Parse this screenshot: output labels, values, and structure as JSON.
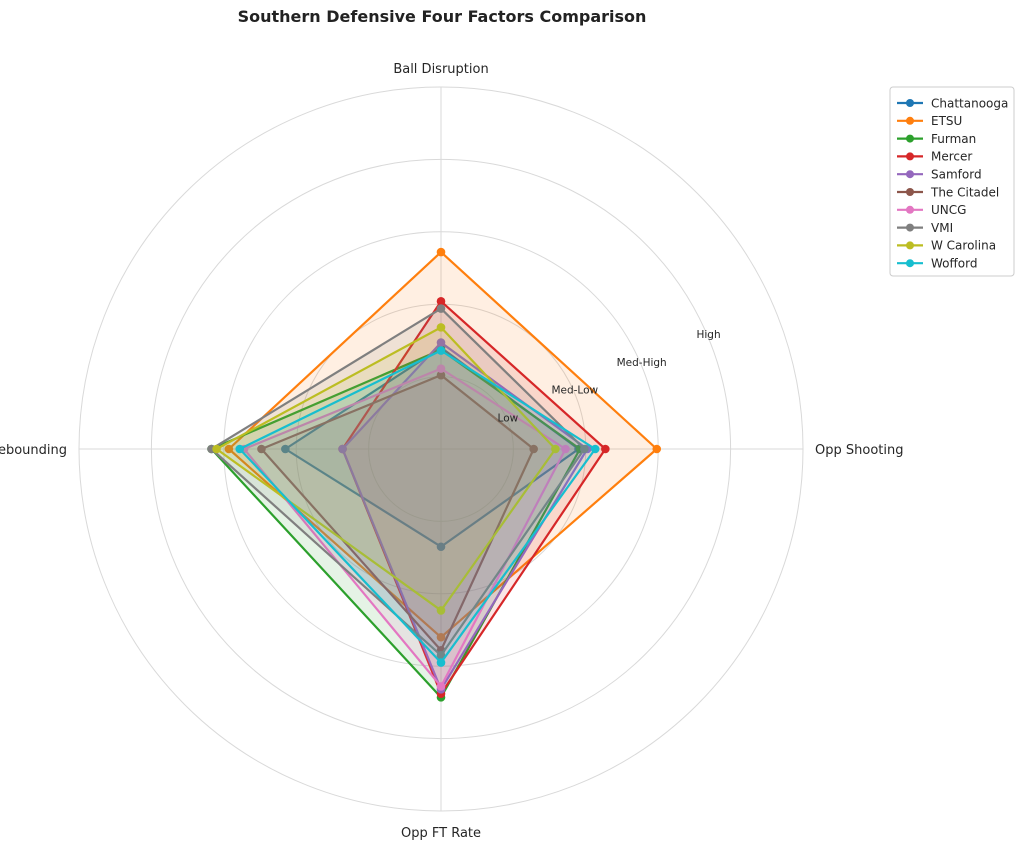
{
  "chart_data": {
    "type": "radar",
    "title": "Southern Defensive Four Factors Comparison",
    "axes": [
      "Ball Disruption",
      "Opp Shooting",
      "Opp FT Rate",
      "Def Rebounding"
    ],
    "rings": [
      1,
      2,
      3,
      4
    ],
    "ring_labels": [
      "Low",
      "Med-Low",
      "Med-High",
      "High"
    ],
    "rmax": 5,
    "grid": true,
    "legend_position": "top-right",
    "series": [
      {
        "name": "Chattanooga",
        "color": "#1f77b4",
        "values": [
          1.4,
          1.9,
          1.35,
          2.15
        ]
      },
      {
        "name": "ETSU",
        "color": "#ff7f0e",
        "values": [
          2.72,
          2.98,
          2.6,
          2.93
        ]
      },
      {
        "name": "Furman",
        "color": "#2ca02c",
        "values": [
          1.37,
          1.92,
          3.43,
          3.17
        ]
      },
      {
        "name": "Mercer",
        "color": "#d62728",
        "values": [
          2.04,
          2.27,
          3.38,
          1.36
        ]
      },
      {
        "name": "Samford",
        "color": "#9467bd",
        "values": [
          1.47,
          2.02,
          3.32,
          1.36
        ]
      },
      {
        "name": "The Citadel",
        "color": "#8c564b",
        "values": [
          1.02,
          1.28,
          2.78,
          2.48
        ]
      },
      {
        "name": "UNCG",
        "color": "#e377c2",
        "values": [
          1.11,
          1.72,
          3.28,
          2.72
        ]
      },
      {
        "name": "VMI",
        "color": "#7f7f7f",
        "values": [
          1.94,
          1.98,
          2.85,
          3.17
        ]
      },
      {
        "name": "W Carolina",
        "color": "#bcbd22",
        "values": [
          1.68,
          1.58,
          2.23,
          3.1
        ]
      },
      {
        "name": "Wofford",
        "color": "#17becf",
        "values": [
          1.36,
          2.13,
          2.95,
          2.78
        ]
      }
    ]
  }
}
